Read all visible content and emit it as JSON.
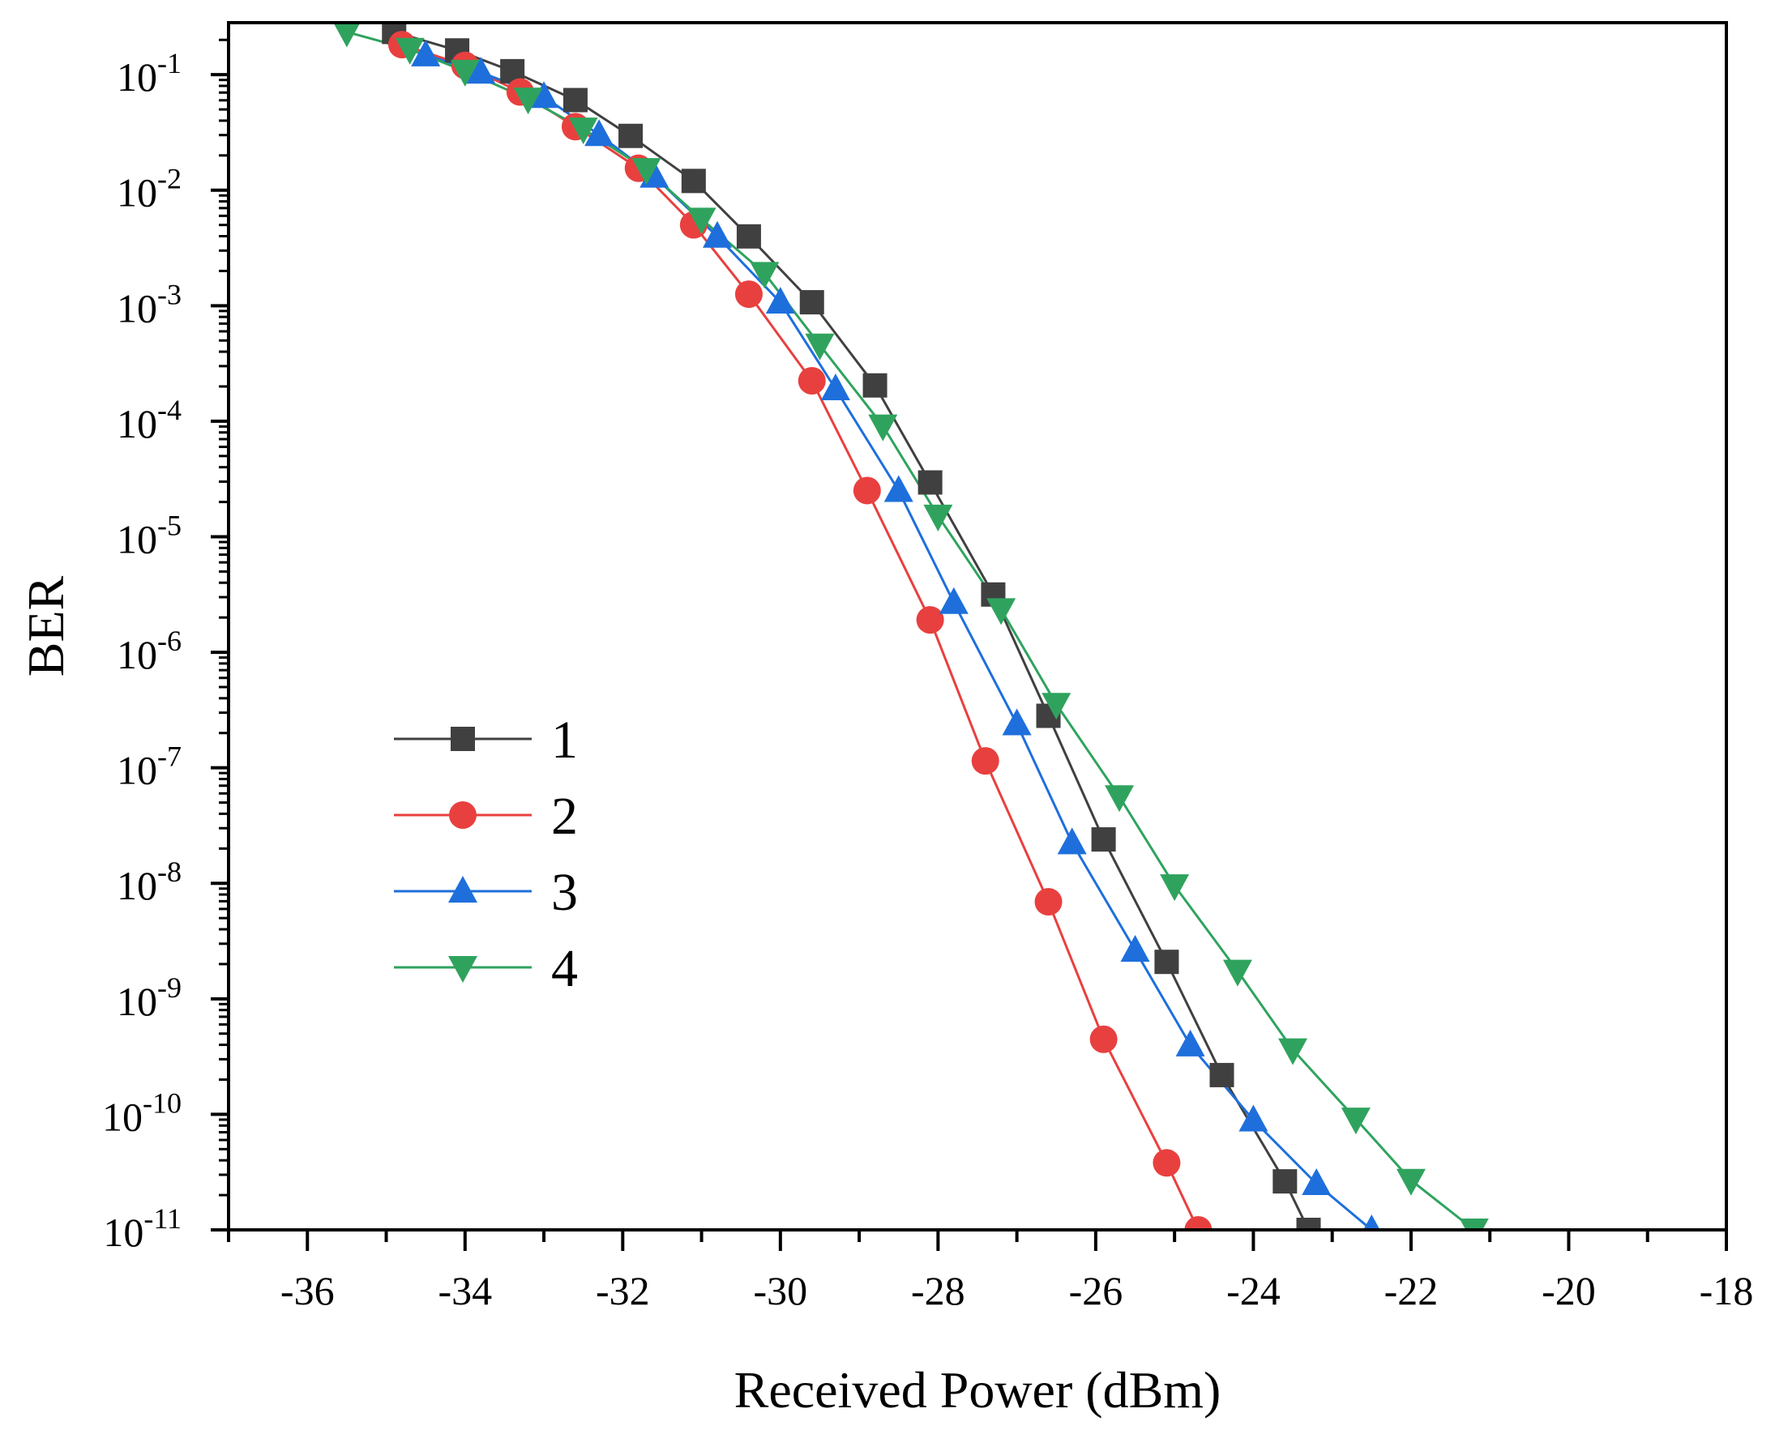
{
  "chart_data": {
    "type": "line",
    "xlabel": "Received Power (dBm)",
    "ylabel": "BER",
    "xlim": [
      -37,
      -18
    ],
    "ylim_log10": [
      -11,
      -0.55
    ],
    "yscale": "log",
    "x_ticks": [
      -36,
      -34,
      -32,
      -30,
      -28,
      -26,
      -24,
      -22,
      -20,
      -18
    ],
    "y_ticks": [
      {
        "base": "10",
        "exp": "-1",
        "value": -1
      },
      {
        "base": "10",
        "exp": "-2",
        "value": -2
      },
      {
        "base": "10",
        "exp": "-3",
        "value": -3
      },
      {
        "base": "10",
        "exp": "-4",
        "value": -4
      },
      {
        "base": "10",
        "exp": "-5",
        "value": -5
      },
      {
        "base": "10",
        "exp": "-6",
        "value": -6
      },
      {
        "base": "10",
        "exp": "-7",
        "value": -7
      },
      {
        "base": "10",
        "exp": "-8",
        "value": -8
      },
      {
        "base": "10",
        "exp": "-9",
        "value": -9
      },
      {
        "base": "10",
        "exp": "-10",
        "value": -10
      },
      {
        "base": "10",
        "exp": "-11",
        "value": -11
      }
    ],
    "legend_position": "middle-left",
    "series": [
      {
        "name": "1",
        "color": "#404040",
        "marker": "square",
        "x": [
          -34.9,
          -34.1,
          -33.4,
          -32.6,
          -31.9,
          -31.1,
          -30.4,
          -29.6,
          -28.8,
          -28.1,
          -27.3,
          -26.6,
          -25.9,
          -25.1,
          -24.4,
          -23.6,
          -23.3
        ],
        "log10_y": [
          -0.63,
          -0.79,
          -0.97,
          -1.22,
          -1.53,
          -1.92,
          -2.4,
          -2.97,
          -3.69,
          -4.53,
          -5.5,
          -6.55,
          -7.62,
          -8.68,
          -9.66,
          -10.58,
          -11.0
        ]
      },
      {
        "name": "2",
        "color": "#e8403f",
        "marker": "circle",
        "x": [
          -34.8,
          -34.0,
          -33.3,
          -32.6,
          -31.8,
          -31.1,
          -30.4,
          -29.6,
          -28.9,
          -28.1,
          -27.4,
          -26.6,
          -25.9,
          -25.1,
          -24.7
        ],
        "log10_y": [
          -0.74,
          -0.92,
          -1.15,
          -1.45,
          -1.81,
          -2.3,
          -2.9,
          -3.65,
          -4.6,
          -5.72,
          -6.94,
          -8.16,
          -9.35,
          -10.42,
          -11.0
        ]
      },
      {
        "name": "3",
        "color": "#1e6fdc",
        "marker": "triangle-up",
        "x": [
          -34.5,
          -33.8,
          -33.0,
          -32.3,
          -31.6,
          -30.8,
          -30.0,
          -29.3,
          -28.5,
          -27.8,
          -27.0,
          -26.3,
          -25.5,
          -24.8,
          -24.0,
          -23.2,
          -22.5
        ],
        "log10_y": [
          -0.83,
          -0.98,
          -1.19,
          -1.52,
          -1.88,
          -2.4,
          -2.97,
          -3.72,
          -4.6,
          -5.57,
          -6.62,
          -7.65,
          -8.58,
          -9.4,
          -10.05,
          -10.6,
          -11.0
        ]
      },
      {
        "name": "4",
        "color": "#2fa35e",
        "marker": "triangle-down",
        "x": [
          -35.5,
          -34.7,
          -34.0,
          -33.2,
          -32.5,
          -31.7,
          -31.0,
          -30.2,
          -29.5,
          -28.7,
          -28.0,
          -27.2,
          -26.5,
          -25.7,
          -25.0,
          -24.2,
          -23.5,
          -22.7,
          -22.0,
          -21.2
        ],
        "log10_y": [
          -0.63,
          -0.78,
          -0.97,
          -1.21,
          -1.47,
          -1.82,
          -2.25,
          -2.72,
          -3.34,
          -4.04,
          -4.82,
          -5.63,
          -6.45,
          -7.25,
          -8.02,
          -8.76,
          -9.44,
          -10.04,
          -10.57,
          -11.0
        ]
      }
    ]
  }
}
